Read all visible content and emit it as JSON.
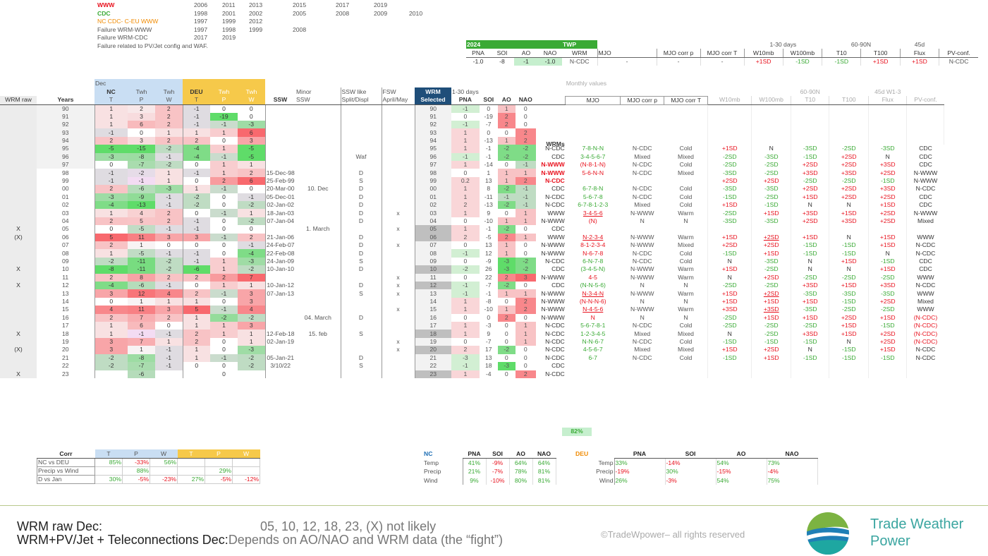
{
  "legend": {
    "rows": [
      {
        "label": "WWW",
        "color": "#e8121e",
        "bold": true,
        "years": [
          "2006",
          "2011",
          "2013",
          "2015",
          "2017",
          "2019"
        ]
      },
      {
        "label": "CDC",
        "color": "#3aaa35",
        "bold": true,
        "years": [
          "1998",
          "2001",
          "2002",
          "2005",
          "2008",
          "2009",
          "2010"
        ]
      },
      {
        "label": "NC CDC- C-EU WWW",
        "color": "#f08a00",
        "bold": false,
        "years": [
          "1997",
          "1999",
          "2012"
        ]
      },
      {
        "label": "Failure WRM-WWW",
        "color": "#555",
        "bold": false,
        "years": [
          "1997",
          "1998",
          "1999",
          "2008"
        ]
      },
      {
        "label": "Failure WRM-CDC",
        "color": "#555",
        "bold": false,
        "years": [
          "2017",
          "2019"
        ]
      },
      {
        "label": "Failure related to PV/Jet config and WAF.",
        "color": "#555",
        "bold": false,
        "years": []
      }
    ]
  },
  "y2024": {
    "tag": "2024",
    "headers": [
      "PNA",
      "SOI",
      "AO",
      "NAO"
    ],
    "values": [
      "-1.0",
      "-8",
      "-1",
      "-1.0"
    ],
    "twp_tag": "TWP",
    "wrm_hdr": "WRM",
    "wrm_val": "N-CDC",
    "headers2": [
      "MJO",
      "MJO corr p",
      "MJO corr T",
      "W10mb",
      "W100mb",
      "T10",
      "T100",
      "Flux",
      "PV-conf."
    ],
    "group_labels": [
      "1-30 days",
      "60-90N",
      "45d"
    ],
    "values2": [
      "-",
      "-",
      "-",
      "+1SD",
      "-1SD",
      "-1SD",
      "+1SD",
      "+1SD",
      "N-CDC"
    ]
  },
  "head": {
    "dec": "Dec",
    "nc": "NC",
    "twh": "Twh",
    "deu": "DEU",
    "t": "T",
    "p": "P",
    "w": "W",
    "wrm_raw": "WRM raw",
    "years": "Years",
    "ssw": "SSW",
    "minor": "Minor",
    "minor2": "SSW",
    "sswlike": "SSW like",
    "sswlike2": "Split/Displ",
    "fsw": "FSW",
    "fsw2": "April/May",
    "wrm_sel": "WRM",
    "wrm_sel2": "Selected",
    "d130": "1-30 days",
    "pna": "PNA",
    "soi": "SOI",
    "ao": "AO",
    "nao": "NAO",
    "monthly": "Monthly values",
    "mjo": "MJO",
    "mjocp": "MJO corr p",
    "mjoct": "MJO corr T",
    "w10": "W10mb",
    "w100": "W100mb",
    "g6090": "60-90N",
    "t10": "T10",
    "t100": "T100",
    "g45": "45d W1-3",
    "flux": "Flux",
    "pvc": "PV-conf.",
    "wrms": "WRMs"
  },
  "rows": [
    [
      "",
      "90",
      "1",
      "2",
      "2",
      "-1",
      "0",
      "0",
      "",
      "",
      "",
      "",
      "90",
      "-1",
      "0",
      "1",
      "0",
      "",
      "",
      "",
      "",
      "",
      "",
      "",
      "",
      "",
      "",
      ""
    ],
    [
      "",
      "91",
      "1",
      "3",
      "2",
      "-1",
      "-19",
      "0",
      "",
      "",
      "",
      "",
      "91",
      "0",
      "-19",
      "2",
      "0",
      "",
      "",
      "",
      "",
      "",
      "",
      "",
      "",
      "",
      "",
      ""
    ],
    [
      "",
      "92",
      "1",
      "6",
      "2",
      "-1",
      "-1",
      "-3",
      "",
      "",
      "",
      "",
      "92",
      "-1",
      "-7",
      "2",
      "0",
      "",
      "",
      "",
      "",
      "",
      "",
      "",
      "",
      "",
      "",
      ""
    ],
    [
      "",
      "93",
      "-1",
      "0",
      "1",
      "1",
      "1",
      "6",
      "",
      "",
      "",
      "",
      "93",
      "1",
      "0",
      "0",
      "2",
      "",
      "",
      "",
      "",
      "",
      "",
      "",
      "",
      "",
      "",
      ""
    ],
    [
      "",
      "94",
      "2",
      "3",
      "2",
      "2",
      "0",
      "3",
      "",
      "",
      "",
      "",
      "94",
      "1",
      "-13",
      "1",
      "2",
      "",
      "",
      "",
      "",
      "",
      "",
      "",
      "",
      "",
      "",
      ""
    ],
    [
      "",
      "95",
      "-5",
      "-15",
      "-2",
      "-4",
      "1",
      "-5",
      "",
      "",
      "",
      "",
      "95",
      "1",
      "-1",
      "-2",
      "-2",
      "N-CDC",
      "7-8-N-N",
      "N-CDC",
      "Cold",
      "+1SD",
      "N",
      "-3SD",
      "-2SD",
      "-3SD",
      "CDC"
    ],
    [
      "",
      "96",
      "-3",
      "-8",
      "-1",
      "-4",
      "-1",
      "-5",
      "",
      "",
      "Waf",
      "",
      "96",
      "-1",
      "-1",
      "-2",
      "-2",
      "CDC",
      "3-4-5-6-7",
      "Mixed",
      "Mixed",
      "-2SD",
      "-3SD",
      "-1SD",
      "+2SD",
      "N",
      "CDC"
    ],
    [
      "",
      "97",
      "0",
      "-7",
      "-2",
      "0",
      "1",
      "1",
      "",
      "",
      "",
      "",
      "97",
      "1",
      "-14",
      "0",
      "-1",
      "N-WWW",
      "(N-8-1-N)",
      "N-CDC",
      "Cold",
      "-2SD",
      "-2SD",
      "+2SD",
      "+2SD",
      "+3SD",
      "CDC"
    ],
    [
      "",
      "98",
      "-1",
      "-2",
      "1",
      "-1",
      "1",
      "2",
      "15-Dec-98",
      "",
      "D",
      "",
      "98",
      "0",
      "1",
      "1",
      "1",
      "N-WWW",
      "5-6-N-N",
      "N-CDC",
      "Mixed",
      "-3SD",
      "-2SD",
      "+3SD",
      "+3SD",
      "+2SD",
      "N-WWW"
    ],
    [
      "",
      "99",
      "-1",
      "-1",
      "1",
      "0",
      "2",
      "6",
      "25-Feb-99",
      "",
      "S",
      "",
      "99",
      "0.2",
      "13",
      "1",
      "2",
      "N-CDC",
      "",
      "",
      "",
      "+2SD",
      "+2SD",
      "-2SD",
      "-2SD",
      "-1SD",
      "N-WWW"
    ],
    [
      "",
      "00",
      "2",
      "-6",
      "-3",
      "1",
      "-1",
      "0",
      "20-Mar-00",
      "10. Dec",
      "D",
      "",
      "00",
      "1",
      "8",
      "-2",
      "-1",
      "CDC",
      "6-7-8-N",
      "N-CDC",
      "Cold",
      "-3SD",
      "-3SD",
      "+2SD",
      "+2SD",
      "+3SD",
      "N-CDC"
    ],
    [
      "",
      "01",
      "-3",
      "-9",
      "-1",
      "-2",
      "0",
      "-1",
      "05-Dec-01",
      "",
      "D",
      "",
      "01",
      "1",
      "-11",
      "-1",
      "-1",
      "N-CDC",
      "5-6-7-8",
      "N-CDC",
      "Cold",
      "-1SD",
      "-2SD",
      "+1SD",
      "+2SD",
      "+2SD",
      "CDC"
    ],
    [
      "",
      "02",
      "-4",
      "-13",
      "-1",
      "-2",
      "0",
      "-2",
      "02-Jan-02",
      "",
      "D",
      "",
      "02",
      "2",
      "-13",
      "-2",
      "-1",
      "N-CDC",
      "6-7-8-1-2-3",
      "Mixed",
      "Cold",
      "+1SD",
      "-1SD",
      "N",
      "N",
      "+1SD",
      "CDC"
    ],
    [
      "",
      "03",
      "1",
      "4",
      "2",
      "0",
      "-1",
      "1",
      "18-Jan-03",
      "",
      "D",
      "x",
      "03",
      "1",
      "9",
      "0",
      "1",
      "WWW",
      "3-4-5-6",
      "N-WWW",
      "Warm",
      "-2SD",
      "+1SD",
      "+3SD",
      "+1SD",
      "+2SD",
      "N-WWW"
    ],
    [
      "",
      "04",
      "2",
      "5",
      "2",
      "-1",
      "0",
      "-2",
      "07-Jan-04",
      "",
      "D",
      "",
      "04",
      "0",
      "-10",
      "1",
      "1",
      "N-WWW",
      "(N)",
      "N",
      "N",
      "-3SD",
      "-3SD",
      "+2SD",
      "+3SD",
      "+2SD",
      "Mixed"
    ],
    [
      "X",
      "05",
      "0",
      "-5",
      "-1",
      "-1",
      "0",
      "0",
      "",
      "1. March",
      "",
      "x",
      "05",
      "1",
      "-1",
      "-2",
      "0",
      "CDC",
      "",
      "",
      "",
      "",
      "",
      "",
      "",
      "",
      ""
    ],
    [
      "(X)",
      "06",
      "5",
      "11",
      "3",
      "3",
      "-1",
      "2",
      "21-Jan-06",
      "",
      "D",
      "",
      "06",
      "2",
      "-5",
      "2",
      "1",
      "WWW",
      "N-2-3-4",
      "N-WWW",
      "Warm",
      "+1SD",
      "+2SD",
      "+1SD",
      "N",
      "+1SD",
      "WWW"
    ],
    [
      "",
      "07",
      "2",
      "1",
      "0",
      "0",
      "0",
      "-1",
      "24-Feb-07",
      "",
      "D",
      "x",
      "07",
      "0",
      "13",
      "1",
      "0",
      "N-WWW",
      "8-1-2-3-4",
      "N-WWW",
      "Mixed",
      "+2SD",
      "+2SD",
      "-1SD",
      "-1SD",
      "+1SD",
      "N-CDC"
    ],
    [
      "",
      "08",
      "1",
      "-5",
      "-1",
      "-1",
      "0",
      "-4",
      "22-Feb-08",
      "",
      "D",
      "",
      "08",
      "-1",
      "12",
      "1",
      "0",
      "N-WWW",
      "N-6-7-8",
      "N-CDC",
      "Cold",
      "-1SD",
      "+1SD",
      "-1SD",
      "-1SD",
      "N",
      "N-CDC"
    ],
    [
      "",
      "09",
      "-2",
      "-11",
      "-2",
      "-1",
      "1",
      "-3",
      "24-Jan-09",
      "",
      "S",
      "",
      "09",
      "0",
      "-9",
      "-3",
      "-2",
      "N-CDC",
      "6-N-7-8",
      "N-CDC",
      "Cold",
      "N",
      "-3SD",
      "N",
      "+1SD",
      "-1SD",
      "CDC"
    ],
    [
      "X",
      "10",
      "-8",
      "-11",
      "-2",
      "-6",
      "1",
      "-2",
      "10-Jan-10",
      "",
      "D",
      "",
      "10",
      "-2",
      "26",
      "-3",
      "-2",
      "CDC",
      "(3-4-5-N)",
      "N-WWW",
      "Warm",
      "+1SD",
      "-2SD",
      "N",
      "N",
      "+1SD",
      "CDC"
    ],
    [
      "",
      "11",
      "2",
      "8",
      "2",
      "2",
      "2",
      "7",
      "",
      "",
      "",
      "x",
      "11",
      "0",
      "22",
      "2",
      "3",
      "N-WWW",
      "4-5",
      "N-WWW",
      "Warm",
      "N",
      "+2SD",
      "-2SD",
      "-2SD",
      "-2SD",
      "WWW"
    ],
    [
      "X",
      "12",
      "-4",
      "-6",
      "-1",
      "0",
      "1",
      "1",
      "10-Jan-12",
      "",
      "D",
      "x",
      "12",
      "-1",
      "-7",
      "-2",
      "0",
      "CDC",
      "(N-N-5-6)",
      "N",
      "N",
      "-2SD",
      "-2SD",
      "+3SD",
      "+1SD",
      "+3SD",
      "N-CDC"
    ],
    [
      "",
      "13",
      "3",
      "12",
      "4",
      "2",
      "-1",
      "3",
      "07-Jan-13",
      "",
      "S",
      "x",
      "13",
      "-1",
      "-1",
      "1",
      "1",
      "N-WWW",
      "N-3-4-N",
      "N-WWW",
      "Warm",
      "+1SD",
      "+2SD",
      "-3SD",
      "-3SD",
      "-3SD",
      "WWW"
    ],
    [
      "",
      "14",
      "0",
      "1",
      "1",
      "1",
      "0",
      "3",
      "",
      "",
      "",
      "",
      "14",
      "1",
      "-8",
      "0",
      "2",
      "N-WWW",
      "(N-N-N-6)",
      "N",
      "N",
      "+1SD",
      "+1SD",
      "+1SD",
      "-1SD",
      "+2SD",
      "Mixed"
    ],
    [
      "",
      "15",
      "4",
      "11",
      "3",
      "5",
      "-1",
      "4",
      "",
      "",
      "",
      "x",
      "15",
      "1",
      "-10",
      "1",
      "2",
      "N-WWW",
      "N-4-5-6",
      "N-WWW",
      "Warm",
      "+3SD",
      "+3SD",
      "-3SD",
      "-2SD",
      "-2SD",
      "WWW"
    ],
    [
      "",
      "16",
      "2",
      "7",
      "2",
      "1",
      "-2",
      "-2",
      "",
      "04. March",
      "D",
      "",
      "16",
      "0",
      "0",
      "2",
      "0",
      "N-WWW",
      "N",
      "N",
      "N",
      "-2SD",
      "+1SD",
      "+1SD",
      "+2SD",
      "+1SD",
      "(N-CDC)"
    ],
    [
      "",
      "17",
      "1",
      "6",
      "0",
      "1",
      "1",
      "3",
      "",
      "",
      "",
      "",
      "17",
      "1",
      "-3",
      "0",
      "1",
      "N-CDC",
      "5-6-7-8-1",
      "N-CDC",
      "Cold",
      "-2SD",
      "-2SD",
      "-2SD",
      "+1SD",
      "-1SD",
      "(N-CDC)"
    ],
    [
      "X",
      "18",
      "1",
      "-1",
      "-1",
      "2",
      "1",
      "1",
      "12-Feb-18",
      "15. feb",
      "S",
      "",
      "18",
      "1",
      "9",
      "0",
      "1",
      "N-CDC",
      "1-2-3-4-5",
      "Mixed",
      "Mixed",
      "N",
      "-2SD",
      "+3SD",
      "+1SD",
      "+2SD",
      "(N-CDC)"
    ],
    [
      "",
      "19",
      "3",
      "7",
      "1",
      "2",
      "0",
      "1",
      "02-Jan-19",
      "",
      "",
      "x",
      "19",
      "0",
      "-7",
      "0",
      "1",
      "N-CDC",
      "N-N-6-7",
      "N-CDC",
      "Cold",
      "-1SD",
      "-1SD",
      "-1SD",
      "N",
      "+2SD",
      "(N-CDC)"
    ],
    [
      "(X)",
      "20",
      "3",
      "1",
      "-1",
      "1",
      "0",
      "-3",
      "",
      "",
      "",
      "x",
      "20",
      "2",
      "17",
      "-2",
      "0",
      "N-CDC",
      "4-5-6-7",
      "Mixed",
      "Mixed",
      "+1SD",
      "+2SD",
      "N",
      "-1SD",
      "+1SD",
      "N-CDC"
    ],
    [
      "",
      "21",
      "-2",
      "-8",
      "-1",
      "1",
      "-1",
      "-2",
      "05-Jan-21",
      "",
      "D",
      "",
      "21",
      "-3",
      "13",
      "0",
      "0",
      "N-CDC",
      "6-7",
      "N-CDC",
      "Cold",
      "-1SD",
      "+1SD",
      "-1SD",
      "-1SD",
      "-1SD",
      "N-CDC"
    ],
    [
      "",
      "22",
      "-2",
      "-7",
      "-1",
      "0",
      "0",
      "-2",
      "3/10/22",
      "",
      "S",
      "",
      "22",
      "-1",
      "18",
      "-3",
      "0",
      "CDC",
      "",
      "",
      "",
      "",
      "",
      "",
      "",
      "",
      ""
    ],
    [
      "X",
      "23",
      "",
      "-6",
      "",
      "",
      "0",
      "",
      "",
      "",
      "",
      "",
      "23",
      "1",
      "-4",
      "0",
      "2",
      "N-CDC",
      "",
      "",
      "",
      "",
      "",
      "",
      "",
      "",
      ""
    ]
  ],
  "pct": "82%",
  "corr": {
    "title": "Corr",
    "headers": [
      "T",
      "P",
      "W",
      "T",
      "P",
      "W"
    ],
    "rows": [
      {
        "label": "NC vs DEU",
        "vals": [
          "85%",
          "-33%",
          "56%",
          "",
          "",
          ""
        ]
      },
      {
        "label": "Precip vs Wind",
        "vals": [
          "",
          "88%",
          "",
          "",
          "29%",
          ""
        ]
      },
      {
        "label": "D vs Jan",
        "vals": [
          "30%",
          "-5%",
          "-23%",
          "27%",
          "-5%",
          "-12%"
        ]
      }
    ]
  },
  "bnc": {
    "title": "NC",
    "headers": [
      "PNA",
      "SOI",
      "AO",
      "NAO"
    ],
    "rows": [
      {
        "label": "Temp",
        "vals": [
          "41%",
          "-9%",
          "64%",
          "64%"
        ]
      },
      {
        "label": "Precip",
        "vals": [
          "21%",
          "-7%",
          "78%",
          "81%"
        ]
      },
      {
        "label": "Wind",
        "vals": [
          "9%",
          "-10%",
          "80%",
          "81%"
        ]
      }
    ]
  },
  "bdeu": {
    "title": "DEU",
    "headers": [
      "PNA",
      "SOI",
      "AO",
      "NAO"
    ],
    "rows": [
      {
        "label": "Temp",
        "vals": [
          "33%",
          "-14%",
          "54%",
          "73%"
        ]
      },
      {
        "label": "Precip",
        "vals": [
          "-19%",
          "30%",
          "-15%",
          "-4%"
        ]
      },
      {
        "label": "Wind",
        "vals": [
          "26%",
          "-3%",
          "54%",
          "75%"
        ]
      }
    ]
  },
  "footer": {
    "l1a": "WRM raw Dec:",
    "l1b": "05, 10, 12, 18, 23, (X) not likely",
    "l2a": "WRM+PV/Jet + Teleconnections Dec:",
    "l2b": "Depends on AO/NAO and WRM data (the “fight”)",
    "copy": "©TradeWpower– all rights reserved",
    "brand1": "Trade Weather",
    "brand2": "Power"
  },
  "colors": {
    "green": "#3aaa35",
    "red": "#e8121e",
    "orange": "#f08a00",
    "deu_header": "#f6c94a",
    "nc_header": "#c9def3",
    "brand": "#3aa5a0"
  }
}
